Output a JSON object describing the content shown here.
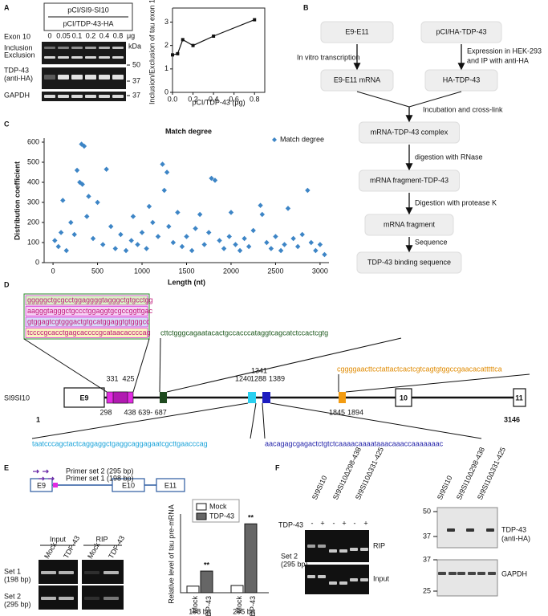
{
  "letters": [
    "A",
    "B",
    "C",
    "D",
    "E",
    "F"
  ],
  "panel_a": {
    "header1": "pCI/SI9-SI10",
    "header2": "pCI/TDP-43-HA",
    "doses": [
      "0",
      "0.05",
      "0.1",
      "0.2",
      "0.4",
      "0.8"
    ],
    "dose_unit": "μg",
    "row_labels": [
      "Exon 10",
      "Inclusion",
      "Exclusion",
      "TDP-43",
      "(anti-HA)",
      "GAPDH"
    ],
    "kda_label": "kDa",
    "kda": [
      "50",
      "37",
      "37"
    ]
  },
  "chart_data": [
    {
      "type": "line",
      "xlabel": "pCI/TDP-43 (μg)",
      "ylabel": "Inclusion/Exclusion of tau exon 10",
      "x": [
        0,
        0.05,
        0.1,
        0.2,
        0.4,
        0.8
      ],
      "values": [
        1.6,
        1.65,
        2.25,
        2.0,
        2.4,
        3.1
      ],
      "color": "#111111",
      "xlim": [
        0,
        0.9
      ],
      "ylim": [
        0,
        3.6
      ],
      "xticks": [
        {
          "value": 0,
          "label": "0.0"
        },
        0.2,
        0.4,
        0.6,
        0.8
      ],
      "yticks": [
        0,
        1,
        2,
        3
      ]
    },
    {
      "type": "scatter",
      "title": "Match degree",
      "xlabel": "Length (nt)",
      "ylabel": "Distribution coefficient",
      "xlim": [
        -100,
        3100
      ],
      "ylim": [
        0,
        620
      ],
      "xticks": [
        0,
        500,
        1000,
        1500,
        2000,
        2500,
        3000
      ],
      "yticks": [
        0,
        100,
        200,
        300,
        400,
        500,
        600
      ],
      "legend": "upper right",
      "x": [
        20,
        60,
        90,
        110,
        150,
        200,
        240,
        270,
        300,
        320,
        330,
        350,
        380,
        400,
        450,
        500,
        560,
        600,
        650,
        700,
        760,
        820,
        880,
        900,
        950,
        1000,
        1050,
        1080,
        1120,
        1180,
        1230,
        1250,
        1280,
        1300,
        1350,
        1400,
        1450,
        1500,
        1560,
        1600,
        1650,
        1700,
        1750,
        1780,
        1820,
        1870,
        1920,
        1980,
        2000,
        2050,
        2100,
        2150,
        2200,
        2250,
        2330,
        2350,
        2400,
        2450,
        2500,
        2560,
        2600,
        2640,
        2700,
        2750,
        2800,
        2860,
        2900,
        2950,
        3000,
        3050
      ],
      "series": [
        {
          "name": "Match degree",
          "color": "#3d85c6",
          "values": [
            110,
            80,
            150,
            310,
            60,
            200,
            140,
            460,
            400,
            590,
            390,
            580,
            230,
            330,
            120,
            300,
            90,
            465,
            180,
            70,
            140,
            60,
            110,
            230,
            90,
            150,
            70,
            280,
            200,
            130,
            490,
            360,
            450,
            180,
            100,
            250,
            80,
            130,
            60,
            170,
            240,
            90,
            150,
            420,
            410,
            110,
            70,
            130,
            250,
            90,
            60,
            120,
            80,
            160,
            285,
            240,
            100,
            70,
            130,
            60,
            90,
            270,
            120,
            80,
            140,
            360,
            100,
            60,
            90,
            40
          ]
        }
      ]
    },
    {
      "type": "bar",
      "ylabel": "Relative level of tau pre-mRNA",
      "categories": [
        "198 bp",
        "295 bp"
      ],
      "ylim": [
        0,
        12
      ],
      "bar_labels": [
        "Mock",
        "TDP-43",
        "Mock",
        "TDP-43"
      ],
      "annotations": [
        "**",
        "**"
      ],
      "series": [
        {
          "name": "Mock",
          "color": "#ffffff",
          "values": [
            1,
            1.1
          ]
        },
        {
          "name": "TDP-43",
          "color": "#666666",
          "values": [
            3.3,
            10.5
          ]
        }
      ]
    }
  ],
  "panel_b": {
    "nodes": [
      "E9-E11",
      "pCI/HA-TDP-43",
      "E9-E11 mRNA",
      "HA-TDP-43",
      "mRNA-TDP-43 complex",
      "mRNA fragment-TDP-43",
      "mRNA fragment",
      "TDP-43 binding sequence"
    ],
    "steps": [
      "In vitro transcription",
      "Expression in HEK-293",
      "and IP with anti-HA",
      "Incubation and cross-link",
      "digestion with RNase",
      "Digestion with protease K",
      "Sequence"
    ]
  },
  "panel_d": {
    "seq_box": [
      "gggggctgcgcctggaggggtagggctgtgcctgg",
      "aagggtagggctgccctggaggtgcgccggttgac",
      "gtggagtcgtgggactgtgcatggaggtgtgggcc",
      "tccccgcacctgagcaccccgcataacaccccag"
    ],
    "green_seq": "cttctgggcagaatacactgccacccataggtcagcatctccactcgtg",
    "orange_seq": "cggggaacttcctattactcactcgtcagtgtggccgaacacatttttca",
    "cyan_seq": "taatcccagctactcaggaggctgaggcaggagaatcgcttgaacccag",
    "blue_seq": "aacagagcgagactctgtctcaaaacaaaataaacaaaccaaaaaaac",
    "gene": "SI9SI10",
    "exons": [
      "E9",
      "10",
      "11"
    ],
    "ends": [
      "1",
      "3146"
    ],
    "positions": [
      "331",
      "425",
      "298",
      "438",
      "639- 687",
      "1240",
      "1288",
      "1341",
      "1389",
      "1845",
      "1894"
    ]
  },
  "panel_e": {
    "primers": [
      "Primer set 2 (295 bp)",
      "Primer set 1 (198 bp)"
    ],
    "exons": [
      "E9",
      "E10",
      "E11"
    ],
    "groups": [
      "Input",
      "RIP"
    ],
    "lanes": [
      "Mock",
      "TDP-43",
      "Mock",
      "TDP-43"
    ],
    "rows": [
      "Set 1",
      "(198 bp)",
      "Set 2",
      "(295 bp)"
    ]
  },
  "panel_f": {
    "lanes": [
      "SI9SI10",
      "SI9SI10Δ298-438",
      "SI9SI10Δ331-425"
    ],
    "treatment": "TDP-43",
    "signs": [
      "-",
      "+"
    ],
    "rows": [
      "RIP",
      "Input"
    ],
    "set": [
      "Set 2",
      "(295 bp)"
    ],
    "blot": [
      "TDP-43",
      "(anti-HA)",
      "GAPDH"
    ],
    "kda": [
      "50",
      "37",
      "37",
      "25"
    ]
  }
}
